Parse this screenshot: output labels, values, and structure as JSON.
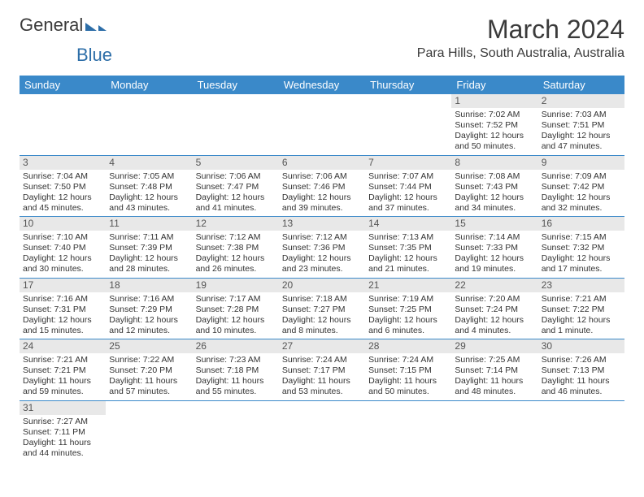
{
  "logo": {
    "part1": "General",
    "part2": "Blue"
  },
  "title": "March 2024",
  "location": "Para Hills, South Australia, Australia",
  "colors": {
    "headerBg": "#3a89c9",
    "headerText": "#ffffff",
    "dayNumBg": "#e8e8e8",
    "border": "#3a89c9"
  },
  "dayHeaders": [
    "Sunday",
    "Monday",
    "Tuesday",
    "Wednesday",
    "Thursday",
    "Friday",
    "Saturday"
  ],
  "weeks": [
    [
      null,
      null,
      null,
      null,
      null,
      {
        "n": "1",
        "sr": "Sunrise: 7:02 AM",
        "ss": "Sunset: 7:52 PM",
        "d1": "Daylight: 12 hours",
        "d2": "and 50 minutes."
      },
      {
        "n": "2",
        "sr": "Sunrise: 7:03 AM",
        "ss": "Sunset: 7:51 PM",
        "d1": "Daylight: 12 hours",
        "d2": "and 47 minutes."
      }
    ],
    [
      {
        "n": "3",
        "sr": "Sunrise: 7:04 AM",
        "ss": "Sunset: 7:50 PM",
        "d1": "Daylight: 12 hours",
        "d2": "and 45 minutes."
      },
      {
        "n": "4",
        "sr": "Sunrise: 7:05 AM",
        "ss": "Sunset: 7:48 PM",
        "d1": "Daylight: 12 hours",
        "d2": "and 43 minutes."
      },
      {
        "n": "5",
        "sr": "Sunrise: 7:06 AM",
        "ss": "Sunset: 7:47 PM",
        "d1": "Daylight: 12 hours",
        "d2": "and 41 minutes."
      },
      {
        "n": "6",
        "sr": "Sunrise: 7:06 AM",
        "ss": "Sunset: 7:46 PM",
        "d1": "Daylight: 12 hours",
        "d2": "and 39 minutes."
      },
      {
        "n": "7",
        "sr": "Sunrise: 7:07 AM",
        "ss": "Sunset: 7:44 PM",
        "d1": "Daylight: 12 hours",
        "d2": "and 37 minutes."
      },
      {
        "n": "8",
        "sr": "Sunrise: 7:08 AM",
        "ss": "Sunset: 7:43 PM",
        "d1": "Daylight: 12 hours",
        "d2": "and 34 minutes."
      },
      {
        "n": "9",
        "sr": "Sunrise: 7:09 AM",
        "ss": "Sunset: 7:42 PM",
        "d1": "Daylight: 12 hours",
        "d2": "and 32 minutes."
      }
    ],
    [
      {
        "n": "10",
        "sr": "Sunrise: 7:10 AM",
        "ss": "Sunset: 7:40 PM",
        "d1": "Daylight: 12 hours",
        "d2": "and 30 minutes."
      },
      {
        "n": "11",
        "sr": "Sunrise: 7:11 AM",
        "ss": "Sunset: 7:39 PM",
        "d1": "Daylight: 12 hours",
        "d2": "and 28 minutes."
      },
      {
        "n": "12",
        "sr": "Sunrise: 7:12 AM",
        "ss": "Sunset: 7:38 PM",
        "d1": "Daylight: 12 hours",
        "d2": "and 26 minutes."
      },
      {
        "n": "13",
        "sr": "Sunrise: 7:12 AM",
        "ss": "Sunset: 7:36 PM",
        "d1": "Daylight: 12 hours",
        "d2": "and 23 minutes."
      },
      {
        "n": "14",
        "sr": "Sunrise: 7:13 AM",
        "ss": "Sunset: 7:35 PM",
        "d1": "Daylight: 12 hours",
        "d2": "and 21 minutes."
      },
      {
        "n": "15",
        "sr": "Sunrise: 7:14 AM",
        "ss": "Sunset: 7:33 PM",
        "d1": "Daylight: 12 hours",
        "d2": "and 19 minutes."
      },
      {
        "n": "16",
        "sr": "Sunrise: 7:15 AM",
        "ss": "Sunset: 7:32 PM",
        "d1": "Daylight: 12 hours",
        "d2": "and 17 minutes."
      }
    ],
    [
      {
        "n": "17",
        "sr": "Sunrise: 7:16 AM",
        "ss": "Sunset: 7:31 PM",
        "d1": "Daylight: 12 hours",
        "d2": "and 15 minutes."
      },
      {
        "n": "18",
        "sr": "Sunrise: 7:16 AM",
        "ss": "Sunset: 7:29 PM",
        "d1": "Daylight: 12 hours",
        "d2": "and 12 minutes."
      },
      {
        "n": "19",
        "sr": "Sunrise: 7:17 AM",
        "ss": "Sunset: 7:28 PM",
        "d1": "Daylight: 12 hours",
        "d2": "and 10 minutes."
      },
      {
        "n": "20",
        "sr": "Sunrise: 7:18 AM",
        "ss": "Sunset: 7:27 PM",
        "d1": "Daylight: 12 hours",
        "d2": "and 8 minutes."
      },
      {
        "n": "21",
        "sr": "Sunrise: 7:19 AM",
        "ss": "Sunset: 7:25 PM",
        "d1": "Daylight: 12 hours",
        "d2": "and 6 minutes."
      },
      {
        "n": "22",
        "sr": "Sunrise: 7:20 AM",
        "ss": "Sunset: 7:24 PM",
        "d1": "Daylight: 12 hours",
        "d2": "and 4 minutes."
      },
      {
        "n": "23",
        "sr": "Sunrise: 7:21 AM",
        "ss": "Sunset: 7:22 PM",
        "d1": "Daylight: 12 hours",
        "d2": "and 1 minute."
      }
    ],
    [
      {
        "n": "24",
        "sr": "Sunrise: 7:21 AM",
        "ss": "Sunset: 7:21 PM",
        "d1": "Daylight: 11 hours",
        "d2": "and 59 minutes."
      },
      {
        "n": "25",
        "sr": "Sunrise: 7:22 AM",
        "ss": "Sunset: 7:20 PM",
        "d1": "Daylight: 11 hours",
        "d2": "and 57 minutes."
      },
      {
        "n": "26",
        "sr": "Sunrise: 7:23 AM",
        "ss": "Sunset: 7:18 PM",
        "d1": "Daylight: 11 hours",
        "d2": "and 55 minutes."
      },
      {
        "n": "27",
        "sr": "Sunrise: 7:24 AM",
        "ss": "Sunset: 7:17 PM",
        "d1": "Daylight: 11 hours",
        "d2": "and 53 minutes."
      },
      {
        "n": "28",
        "sr": "Sunrise: 7:24 AM",
        "ss": "Sunset: 7:15 PM",
        "d1": "Daylight: 11 hours",
        "d2": "and 50 minutes."
      },
      {
        "n": "29",
        "sr": "Sunrise: 7:25 AM",
        "ss": "Sunset: 7:14 PM",
        "d1": "Daylight: 11 hours",
        "d2": "and 48 minutes."
      },
      {
        "n": "30",
        "sr": "Sunrise: 7:26 AM",
        "ss": "Sunset: 7:13 PM",
        "d1": "Daylight: 11 hours",
        "d2": "and 46 minutes."
      }
    ],
    [
      {
        "n": "31",
        "sr": "Sunrise: 7:27 AM",
        "ss": "Sunset: 7:11 PM",
        "d1": "Daylight: 11 hours",
        "d2": "and 44 minutes."
      },
      null,
      null,
      null,
      null,
      null,
      null
    ]
  ]
}
